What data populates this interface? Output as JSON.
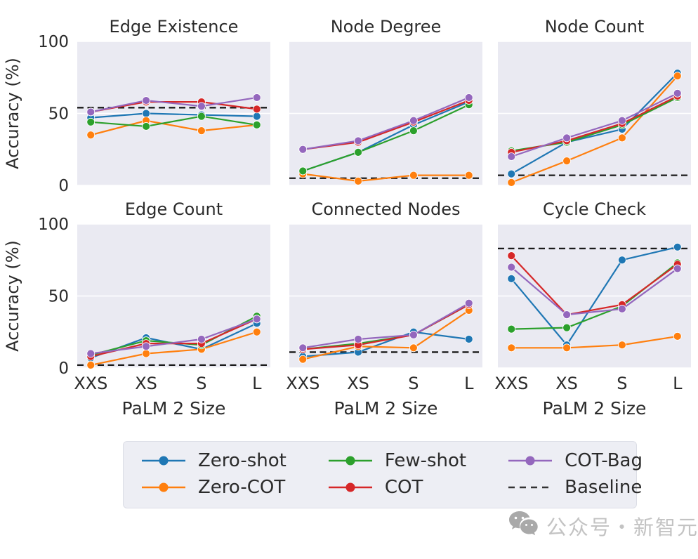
{
  "watermark": {
    "text": "公众号・新智元",
    "icon": "wechat-icon"
  },
  "chart_data": {
    "type": "line",
    "categories": [
      "XXS",
      "XS",
      "S",
      "L"
    ],
    "xlabel": "PaLM 2 Size",
    "ylabel": "Accuracy (%)",
    "ylim": [
      0,
      100
    ],
    "yticks": [
      0,
      50,
      100
    ],
    "grid": true,
    "panel_bg": "#eaeaf2",
    "gridline_color": "#ffffff",
    "baseline_color": "#1a1a1a",
    "legend_position": "bottom",
    "legend": [
      {
        "label": "Zero-shot",
        "color": "#1f77b4",
        "style": "solid"
      },
      {
        "label": "Zero-COT",
        "color": "#ff7f0e",
        "style": "solid"
      },
      {
        "label": "Few-shot",
        "color": "#2ca02c",
        "style": "solid"
      },
      {
        "label": "COT",
        "color": "#d62728",
        "style": "solid"
      },
      {
        "label": "COT-Bag",
        "color": "#9467bd",
        "style": "solid"
      },
      {
        "label": "Baseline",
        "color": "#333333",
        "style": "dashed"
      }
    ],
    "panels": [
      {
        "title": "Edge Existence",
        "baseline": 54,
        "series": [
          {
            "name": "Zero-shot",
            "values": [
              47,
              50,
              49,
              48
            ]
          },
          {
            "name": "Zero-COT",
            "values": [
              35,
              45,
              38,
              42
            ]
          },
          {
            "name": "Few-shot",
            "values": [
              44,
              41,
              48,
              42
            ]
          },
          {
            "name": "COT",
            "values": [
              51,
              58,
              58,
              53
            ]
          },
          {
            "name": "COT-Bag",
            "values": [
              51,
              59,
              55,
              61
            ]
          }
        ]
      },
      {
        "title": "Node Degree",
        "baseline": 5,
        "series": [
          {
            "name": "Zero-shot",
            "values": [
              10,
              23,
              42,
              58
            ]
          },
          {
            "name": "Zero-COT",
            "values": [
              8,
              3,
              7,
              7
            ]
          },
          {
            "name": "Few-shot",
            "values": [
              10,
              23,
              38,
              56
            ]
          },
          {
            "name": "COT",
            "values": [
              25,
              30,
              44,
              59
            ]
          },
          {
            "name": "COT-Bag",
            "values": [
              25,
              31,
              45,
              61
            ]
          }
        ]
      },
      {
        "title": "Node Count",
        "baseline": 7,
        "series": [
          {
            "name": "Zero-shot",
            "values": [
              8,
              30,
              39,
              78
            ]
          },
          {
            "name": "Zero-COT",
            "values": [
              2,
              17,
              33,
              76
            ]
          },
          {
            "name": "Few-shot",
            "values": [
              24,
              30,
              42,
              61
            ]
          },
          {
            "name": "COT",
            "values": [
              23,
              31,
              43,
              62
            ]
          },
          {
            "name": "COT-Bag",
            "values": [
              20,
              33,
              45,
              64
            ]
          }
        ]
      },
      {
        "title": "Edge Count",
        "baseline": 2,
        "series": [
          {
            "name": "Zero-shot",
            "values": [
              7,
              21,
              13,
              31
            ]
          },
          {
            "name": "Zero-COT",
            "values": [
              2,
              10,
              13,
              25
            ]
          },
          {
            "name": "Few-shot",
            "values": [
              9,
              19,
              16,
              36
            ]
          },
          {
            "name": "COT",
            "values": [
              8,
              17,
              17,
              34
            ]
          },
          {
            "name": "COT-Bag",
            "values": [
              10,
              15,
              20,
              34
            ]
          }
        ]
      },
      {
        "title": "Connected Nodes",
        "baseline": 11,
        "series": [
          {
            "name": "Zero-shot",
            "values": [
              8,
              11,
              25,
              20
            ]
          },
          {
            "name": "Zero-COT",
            "values": [
              6,
              15,
              14,
              40
            ]
          },
          {
            "name": "Few-shot",
            "values": [
              13,
              17,
              23,
              44
            ]
          },
          {
            "name": "COT",
            "values": [
              13,
              16,
              23,
              44
            ]
          },
          {
            "name": "COT-Bag",
            "values": [
              14,
              20,
              23,
              45
            ]
          }
        ]
      },
      {
        "title": "Cycle Check",
        "baseline": 83,
        "series": [
          {
            "name": "Zero-shot",
            "values": [
              62,
              16,
              75,
              84
            ]
          },
          {
            "name": "Zero-COT",
            "values": [
              14,
              14,
              16,
              22
            ]
          },
          {
            "name": "Few-shot",
            "values": [
              27,
              28,
              43,
              73
            ]
          },
          {
            "name": "COT",
            "values": [
              78,
              37,
              44,
              72
            ]
          },
          {
            "name": "COT-Bag",
            "values": [
              70,
              37,
              41,
              69
            ]
          }
        ]
      }
    ]
  }
}
